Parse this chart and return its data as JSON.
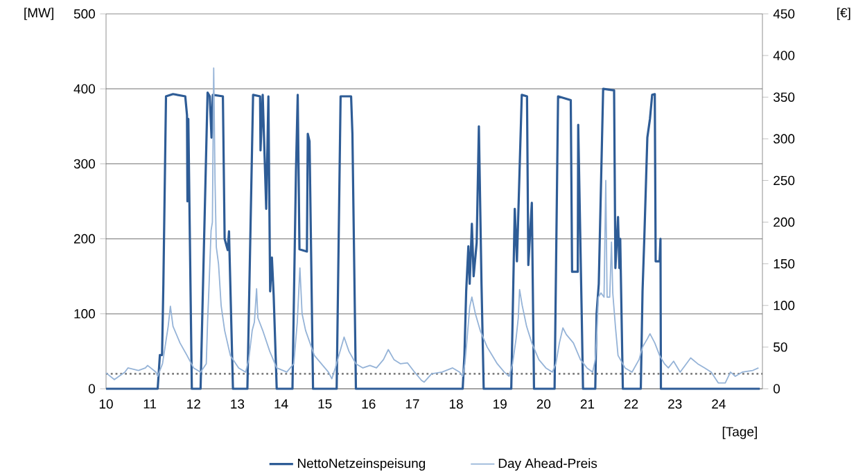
{
  "chart_data": {
    "type": "line",
    "xlabel": "[Tage]",
    "ylabel": "[MW]",
    "y2label": "[€]",
    "xlim": [
      10,
      25
    ],
    "xticks": [
      10,
      11,
      12,
      13,
      14,
      15,
      16,
      17,
      18,
      19,
      20,
      21,
      22,
      23,
      24
    ],
    "ylim": [
      0,
      500
    ],
    "yticks": [
      0,
      100,
      200,
      300,
      400,
      500
    ],
    "y2lim": [
      0,
      450
    ],
    "y2ticks": [
      0,
      50,
      100,
      150,
      200,
      250,
      300,
      350,
      400,
      450
    ],
    "grid": "y",
    "legend": "bottom",
    "marker": "none",
    "ref_lines": [
      {
        "axis": "y",
        "value": 20,
        "color": "#7f7f7f",
        "line_style": "dotted"
      }
    ],
    "series": [
      {
        "name": "NettoNetzeinspeisung",
        "color": "#2e5c96",
        "line_style": "solid",
        "axis": "y",
        "x": [
          10.0,
          11.18,
          11.23,
          11.28,
          11.31,
          11.37,
          11.53,
          11.81,
          11.85,
          11.86,
          11.88,
          11.96,
          12.16,
          12.32,
          12.37,
          12.41,
          12.44,
          12.67,
          12.71,
          12.78,
          12.81,
          12.82,
          12.9,
          13.23,
          13.36,
          13.52,
          13.53,
          13.58,
          13.66,
          13.71,
          13.75,
          13.79,
          13.83,
          13.9,
          14.26,
          14.34,
          14.38,
          14.42,
          14.59,
          14.61,
          14.65,
          14.73,
          15.27,
          15.36,
          15.6,
          15.63,
          15.71,
          18.15,
          18.19,
          18.23,
          18.28,
          18.31,
          18.36,
          18.4,
          18.47,
          18.52,
          18.58,
          18.63,
          19.26,
          19.34,
          19.39,
          19.5,
          19.62,
          19.65,
          19.73,
          19.78,
          20.25,
          20.33,
          20.62,
          20.65,
          20.78,
          20.79,
          20.87,
          20.9,
          21.18,
          21.21,
          21.26,
          21.36,
          21.61,
          21.64,
          21.7,
          21.73,
          21.75,
          21.78,
          21.81,
          22.22,
          22.26,
          22.3,
          22.37,
          22.43,
          22.48,
          22.54,
          22.56,
          22.65,
          22.67,
          22.68,
          24.94
        ],
        "values": [
          0,
          0,
          45,
          45,
          140,
          390,
          393,
          390,
          365,
          250,
          360,
          0,
          0,
          395,
          390,
          335,
          392,
          390,
          200,
          185,
          210,
          185,
          0,
          0,
          392,
          390,
          318,
          392,
          240,
          390,
          130,
          175,
          125,
          0,
          0,
          290,
          392,
          186,
          183,
          340,
          330,
          0,
          0,
          390,
          390,
          340,
          0,
          0,
          45,
          130,
          190,
          140,
          220,
          150,
          195,
          350,
          140,
          0,
          0,
          240,
          170,
          392,
          390,
          165,
          248,
          0,
          0,
          390,
          385,
          156,
          156,
          352,
          100,
          0,
          0,
          100,
          140,
          400,
          398,
          161,
          229,
          161,
          200,
          100,
          0,
          0,
          130,
          200,
          335,
          360,
          392,
          393,
          170,
          170,
          200,
          0,
          0
        ]
      },
      {
        "name": "Day Ahead-Preis",
        "color": "#95b3d7",
        "line_style": "solid",
        "axis": "y2",
        "x": [
          10.0,
          10.19,
          10.43,
          10.5,
          10.74,
          10.9,
          10.95,
          11.14,
          11.18,
          11.29,
          11.42,
          11.47,
          11.53,
          11.69,
          11.85,
          12.0,
          12.16,
          12.29,
          12.32,
          12.35,
          12.4,
          12.43,
          12.46,
          12.49,
          12.52,
          12.57,
          12.63,
          12.71,
          12.84,
          13.03,
          13.19,
          13.26,
          13.34,
          13.39,
          13.44,
          13.47,
          13.58,
          13.74,
          13.9,
          14.13,
          14.29,
          14.37,
          14.43,
          14.48,
          14.56,
          14.76,
          14.92,
          15.08,
          15.16,
          15.24,
          15.32,
          15.44,
          15.55,
          15.71,
          15.87,
          16.03,
          16.18,
          16.34,
          16.45,
          16.58,
          16.73,
          16.89,
          17.05,
          17.21,
          17.27,
          17.44,
          17.68,
          17.92,
          18.08,
          18.15,
          18.2,
          18.25,
          18.31,
          18.36,
          18.44,
          18.55,
          18.71,
          18.94,
          19.1,
          19.21,
          19.29,
          19.37,
          19.42,
          19.45,
          19.51,
          19.61,
          19.73,
          19.89,
          20.05,
          20.2,
          20.28,
          20.36,
          20.44,
          20.52,
          20.68,
          20.84,
          20.99,
          21.12,
          21.18,
          21.21,
          21.25,
          21.31,
          21.38,
          21.42,
          21.45,
          21.51,
          21.55,
          21.58,
          21.64,
          21.7,
          21.86,
          22.02,
          22.18,
          22.26,
          22.37,
          22.43,
          22.54,
          22.65,
          22.76,
          22.85,
          22.97,
          23.12,
          23.36,
          23.52,
          23.68,
          23.83,
          23.99,
          24.15,
          24.27,
          24.38,
          24.54,
          24.78,
          24.91
        ],
        "values": [
          19,
          11,
          20,
          25,
          22,
          25,
          28,
          20,
          15,
          30,
          75,
          99,
          75,
          55,
          40,
          25,
          20,
          30,
          80,
          119,
          190,
          200,
          385,
          250,
          170,
          150,
          100,
          70,
          40,
          25,
          20,
          35,
          70,
          80,
          120,
          85,
          70,
          45,
          25,
          20,
          30,
          80,
          145,
          90,
          70,
          40,
          30,
          20,
          12,
          25,
          40,
          62,
          45,
          30,
          25,
          28,
          25,
          35,
          47,
          35,
          30,
          31,
          20,
          10,
          8,
          18,
          20,
          25,
          20,
          15,
          30,
          60,
          98,
          110,
          90,
          70,
          50,
          30,
          20,
          15,
          30,
          60,
          85,
          119,
          100,
          75,
          55,
          35,
          25,
          20,
          30,
          55,
          73,
          65,
          55,
          35,
          25,
          20,
          35,
          60,
          110,
          115,
          110,
          250,
          110,
          110,
          176,
          115,
          75,
          40,
          25,
          20,
          35,
          50,
          60,
          66,
          55,
          40,
          30,
          25,
          33,
          20,
          37,
          30,
          25,
          20,
          7,
          7,
          20,
          15,
          20,
          22,
          25
        ]
      }
    ]
  }
}
